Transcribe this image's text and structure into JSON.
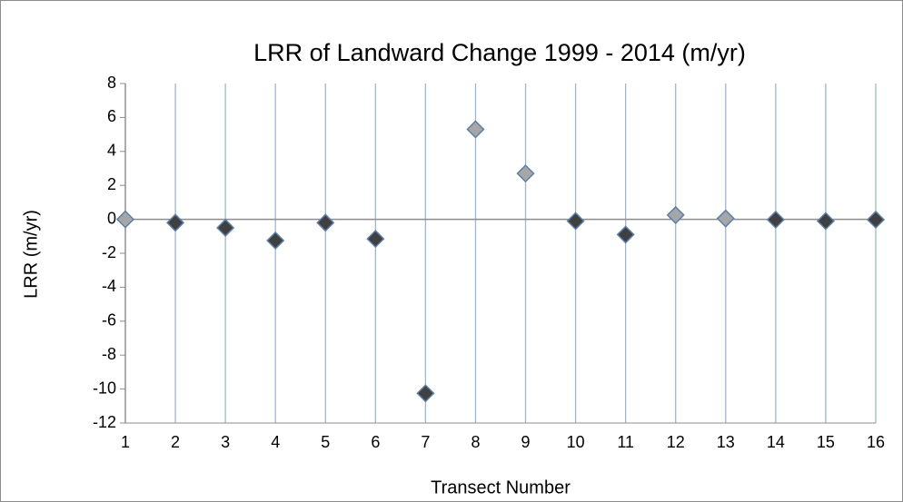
{
  "chart_data": {
    "type": "scatter",
    "title": "LRR of Landward Change 1999 - 2014 (m/yr)",
    "x_label": "Transect Number",
    "y_label": "LRR (m/yr)",
    "x": [
      1,
      2,
      3,
      4,
      5,
      6,
      7,
      8,
      9,
      10,
      11,
      12,
      13,
      14,
      15,
      16
    ],
    "values": [
      0.0,
      -0.2,
      -0.5,
      -1.25,
      -0.2,
      -1.15,
      -10.25,
      5.3,
      2.7,
      -0.1,
      -0.9,
      0.25,
      0.05,
      -0.02,
      -0.1,
      -0.02
    ],
    "point_colors": [
      "#a6a6a6",
      "#404040",
      "#404040",
      "#404040",
      "#404040",
      "#404040",
      "#404040",
      "#a6a6a6",
      "#a6a6a6",
      "#404040",
      "#404040",
      "#a6a6a6",
      "#a6a6a6",
      "#404040",
      "#404040",
      "#404040"
    ],
    "marker_edge_color": "#5b7fae",
    "xlim": [
      1,
      16
    ],
    "xticks": [
      1,
      2,
      3,
      4,
      5,
      6,
      7,
      8,
      9,
      10,
      11,
      12,
      13,
      14,
      15,
      16
    ],
    "ylim": [
      -12,
      8
    ],
    "yticks": [
      -12,
      -10,
      -8,
      -6,
      -4,
      -2,
      0,
      2,
      4,
      6,
      8
    ],
    "grid": "x"
  }
}
